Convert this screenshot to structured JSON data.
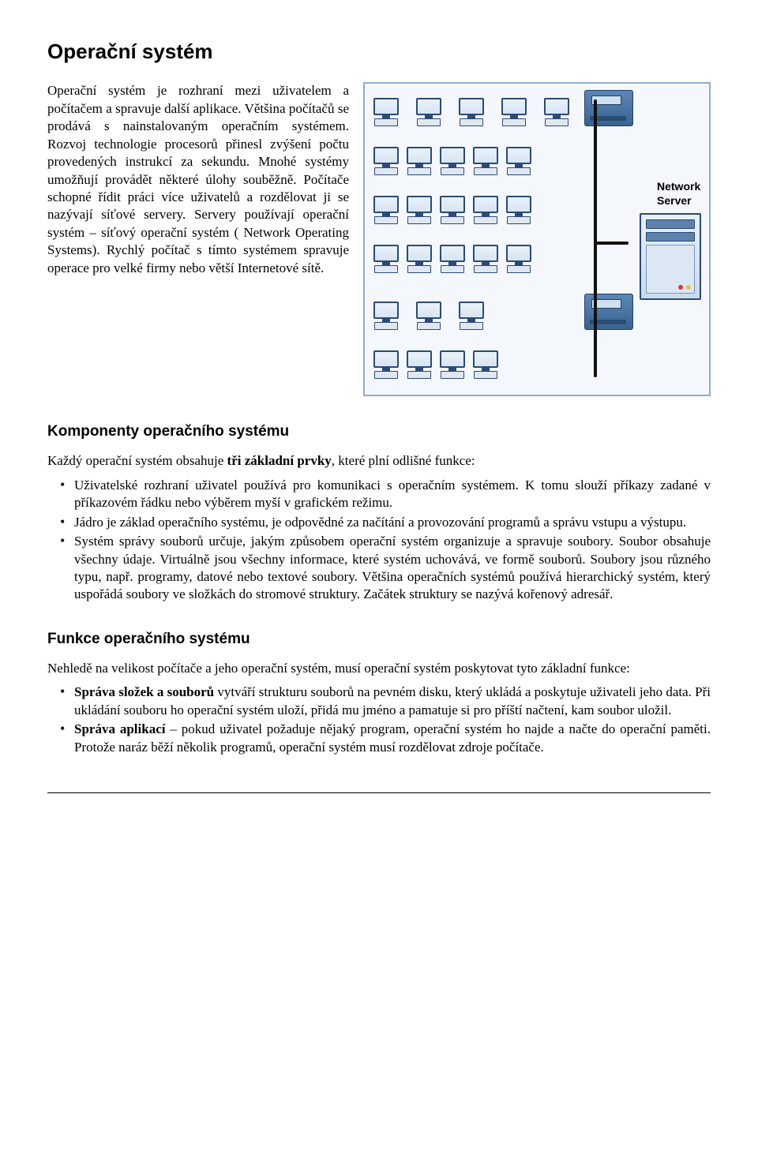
{
  "title": "Operační systém",
  "intro": "Operační systém je rozhraní mezi uživatelem a počítačem a spravuje další aplikace. Většina počítačů se prodává s nainstalovaným operačním systémem. Rozvoj technologie procesorů přinesl zvýšení počtu provedených instrukcí za sekundu. Mnohé systémy umožňují provádět některé úlohy souběžně. Počítače schopné řídit práci více uživatelů a rozdělovat ji se nazývají síťové servery. Servery používají operační systém – síťový operační systém ( Network Operating Systems). Rychlý počítač s tímto systémem spravuje operace pro velké firmy nebo větší Internetové sítě.",
  "diagram": {
    "server_label_line1": "Network",
    "server_label_line2": "Server",
    "rows": 6,
    "pcs_per_full_row": 5,
    "row5_pcs": 3,
    "row6_pcs": 4,
    "border_color": "#8faecc",
    "bg_color": "#f4f7fb",
    "node_border": "#2b4a78",
    "node_fill_top": "#eaf2fb",
    "node_fill_bot": "#d6e4f2",
    "bus_color": "#111111",
    "server_border": "#2b4a78",
    "server_fill_top": "#e8f0f9",
    "server_fill_bot": "#c9dbef",
    "printer_fill_top": "#5b86b8",
    "printer_fill_bot": "#39638f"
  },
  "section_components_title": "Komponenty operačního systému",
  "components_intro_pre": "Každý operační systém obsahuje ",
  "components_intro_bold": "tři základní prvky",
  "components_intro_post": ", které plní odlišné funkce:",
  "components": [
    "Uživatelské rozhraní uživatel používá pro komunikaci s operačním systémem. K tomu slouží příkazy zadané v příkazovém řádku nebo výběrem myší v grafickém režimu.",
    "Jádro je základ operačního systému, je odpovědné za načítání a provozování programů a správu vstupu a výstupu.",
    "Systém správy souborů určuje, jakým způsobem operační systém organizuje a spravuje soubory. Soubor obsahuje všechny údaje. Virtuálně jsou všechny informace, které systém uchovává, ve formě souborů. Soubory jsou různého typu, např. programy, datové nebo textové soubory. Většina operačních systémů používá hierarchický systém, který uspořádá soubory ve složkách do stromové struktury. Začátek struktury se nazývá kořenový adresář."
  ],
  "section_functions_title": "Funkce operačního systému",
  "functions_intro": "Nehledě na velikost počítače a jeho operační systém, musí operační systém poskytovat tyto základní funkce:",
  "functions": [
    {
      "bold": "Správa složek a souborů",
      "rest": " vytváří strukturu souborů na pevném disku, který ukládá a poskytuje uživateli jeho data. Při ukládání souboru ho operační systém uloží, přidá mu jméno a pamatuje si pro příští načtení, kam soubor uložil."
    },
    {
      "bold": "Správa aplikací",
      "rest": " – pokud uživatel požaduje nějaký program, operační systém ho najde a načte do operační paměti. Protože naráz běží několik programů, operační systém musí rozdělovat zdroje počítače."
    }
  ]
}
